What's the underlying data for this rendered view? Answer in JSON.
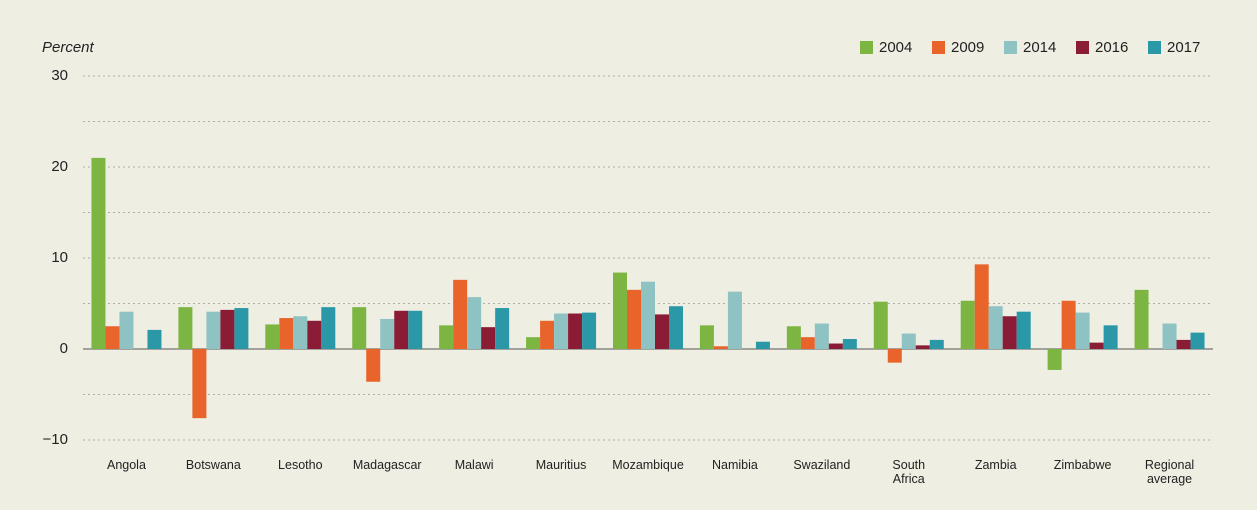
{
  "chart_data": {
    "type": "bar",
    "y_label": "Percent",
    "categories": [
      "Angola",
      "Botswana",
      "Lesotho",
      "Madagascar",
      "Malawi",
      "Mauritius",
      "Mozambique",
      "Namibia",
      "Swaziland",
      "South Africa",
      "Zambia",
      "Zimbabwe",
      "Regional average"
    ],
    "series": [
      {
        "name": "2004",
        "color": "#7db543",
        "values": [
          21,
          4.6,
          2.7,
          4.6,
          2.6,
          1.3,
          8.4,
          2.6,
          2.5,
          5.2,
          5.3,
          -2.3,
          6.5
        ]
      },
      {
        "name": "2009",
        "color": "#e8642b",
        "values": [
          2.5,
          -7.6,
          3.4,
          -3.6,
          7.6,
          3.1,
          6.5,
          0.3,
          1.3,
          -1.5,
          9.3,
          5.3,
          null
        ]
      },
      {
        "name": "2014",
        "color": "#8fc2c3",
        "values": [
          4.1,
          4.1,
          3.6,
          3.3,
          5.7,
          3.9,
          7.4,
          6.3,
          2.8,
          1.7,
          4.7,
          4.0,
          2.8
        ]
      },
      {
        "name": "2016",
        "color": "#8b1c36",
        "values": [
          null,
          4.3,
          3.1,
          4.2,
          2.4,
          3.9,
          3.8,
          null,
          0.6,
          0.4,
          3.6,
          0.7,
          1.0
        ]
      },
      {
        "name": "2017",
        "color": "#2b98a8",
        "values": [
          2.1,
          4.5,
          4.6,
          4.2,
          4.5,
          4.0,
          4.7,
          0.8,
          1.1,
          1.0,
          4.1,
          2.6,
          1.8
        ]
      }
    ],
    "ylim": [
      -10,
      30
    ],
    "yticks": [
      {
        "value": -10,
        "label": "−10"
      },
      0,
      10,
      20,
      30
    ],
    "minor_yticks": [
      -5,
      5,
      15,
      25
    ],
    "grid": true,
    "legend": "top-right"
  }
}
